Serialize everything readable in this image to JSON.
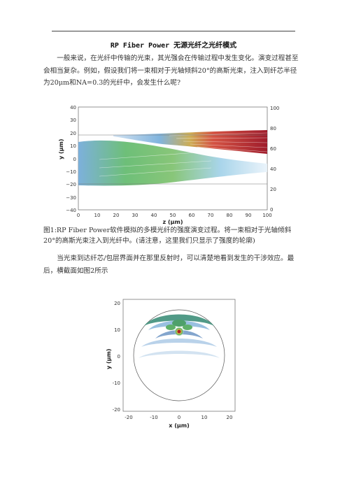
{
  "doc": {
    "title": "RP Fiber Power 无源光纤之光纤模式",
    "para1": "一般来说，在光纤中传输的光束，其光强会在传输过程中发生变化。演变过程甚至会相当复杂。例如，假设我们将一束相对于光轴倾斜20°的高斯光束，注入到纤芯半径为20μm和NA=0.3的光纤中，会发生什么呢?",
    "caption1": "图1:RP Fiber Power软件模拟的多模光纤的强度演变过程。将一束相对于光轴倾斜20°的高斯光束注入到光纤中。(请注意，这里我们只显示了强度的轮廓)",
    "para2": "当光束到达纤芯/包层界面并在那里反射时，可以清楚地看到发生的干涉效应。最后，横截面如图2所示"
  },
  "figure1": {
    "y_axis_label": "y (μm)",
    "x_axis_label": "z (μm)",
    "y_ticks": [
      "40",
      "30",
      "20",
      "10",
      "0",
      "−10",
      "−20",
      "−30",
      "−40"
    ],
    "x_ticks": [
      "0",
      "10",
      "20",
      "30",
      "40",
      "50",
      "60",
      "70",
      "80",
      "90",
      "100"
    ],
    "right_ticks": [
      "100",
      "80",
      "60",
      "40",
      "20",
      "0"
    ]
  },
  "figure2": {
    "y_axis_label": "y (μm)",
    "x_axis_label": "x (μm)",
    "y_ticks": [
      "20",
      "10",
      "0",
      "-10",
      "-20"
    ],
    "x_ticks": [
      "-20",
      "-10",
      "0",
      "10",
      "20"
    ]
  }
}
